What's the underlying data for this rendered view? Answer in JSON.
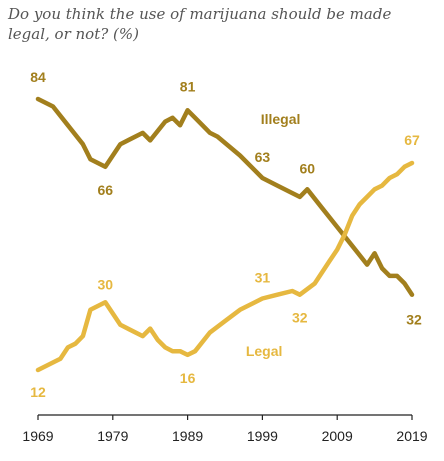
{
  "question": "Do you think the use of marijuana should be made legal, or not? (%)",
  "colors": {
    "illegal": "#A27F1D",
    "legal": "#E6B840",
    "axis": "#222222"
  },
  "chart_data": {
    "type": "line",
    "title": "Do you think the use of marijuana should be made legal, or not? (%)",
    "xlim": [
      1969,
      2019
    ],
    "ylim": [
      0,
      100
    ],
    "x_ticks": [
      "1969",
      "1979",
      "1989",
      "1999",
      "2009",
      "2019"
    ],
    "series": [
      {
        "name": "Illegal",
        "points": [
          [
            1969,
            84
          ],
          [
            1971,
            82
          ],
          [
            1973,
            77
          ],
          [
            1975,
            72
          ],
          [
            1976,
            68
          ],
          [
            1978,
            66
          ],
          [
            1980,
            72
          ],
          [
            1983,
            75
          ],
          [
            1984,
            73
          ],
          [
            1986,
            78
          ],
          [
            1987,
            79
          ],
          [
            1988,
            77
          ],
          [
            1989,
            81
          ],
          [
            1990,
            79
          ],
          [
            1992,
            75
          ],
          [
            1993,
            74
          ],
          [
            1996,
            69
          ],
          [
            1999,
            63
          ],
          [
            2001,
            61
          ],
          [
            2003,
            59
          ],
          [
            2004,
            58
          ],
          [
            2005,
            60
          ],
          [
            2007,
            55
          ],
          [
            2009,
            50
          ],
          [
            2011,
            45
          ],
          [
            2013,
            40
          ],
          [
            2014,
            43
          ],
          [
            2015,
            39
          ],
          [
            2016,
            37
          ],
          [
            2017,
            37
          ],
          [
            2018,
            35
          ],
          [
            2019,
            32
          ]
        ]
      },
      {
        "name": "Legal",
        "points": [
          [
            1969,
            12
          ],
          [
            1972,
            15
          ],
          [
            1973,
            18
          ],
          [
            1974,
            19
          ],
          [
            1975,
            21
          ],
          [
            1976,
            28
          ],
          [
            1978,
            30
          ],
          [
            1980,
            24
          ],
          [
            1983,
            21
          ],
          [
            1984,
            23
          ],
          [
            1985,
            20
          ],
          [
            1986,
            18
          ],
          [
            1987,
            17
          ],
          [
            1988,
            17
          ],
          [
            1989,
            16
          ],
          [
            1990,
            17
          ],
          [
            1992,
            22
          ],
          [
            1994,
            25
          ],
          [
            1996,
            28
          ],
          [
            1999,
            31
          ],
          [
            2001,
            32
          ],
          [
            2003,
            33
          ],
          [
            2004,
            32
          ],
          [
            2006,
            35
          ],
          [
            2008,
            41
          ],
          [
            2009,
            44
          ],
          [
            2010,
            48
          ],
          [
            2011,
            53
          ],
          [
            2012,
            56
          ],
          [
            2013,
            58
          ],
          [
            2014,
            60
          ],
          [
            2015,
            61
          ],
          [
            2016,
            63
          ],
          [
            2017,
            64
          ],
          [
            2018,
            66
          ],
          [
            2019,
            67
          ]
        ]
      }
    ],
    "data_labels": [
      {
        "series": "Illegal",
        "x": 1969,
        "y": 84,
        "text": "84"
      },
      {
        "series": "Illegal",
        "x": 1978,
        "y": 66,
        "text": "66"
      },
      {
        "series": "Illegal",
        "x": 1989,
        "y": 81,
        "text": "81"
      },
      {
        "series": "Illegal",
        "x": 1999,
        "y": 63,
        "text": "63"
      },
      {
        "series": "Illegal",
        "x": 2005,
        "y": 60,
        "text": "60"
      },
      {
        "series": "Illegal",
        "x": 2019,
        "y": 32,
        "text": "32"
      },
      {
        "series": "Legal",
        "x": 1969,
        "y": 12,
        "text": "12"
      },
      {
        "series": "Legal",
        "x": 1978,
        "y": 30,
        "text": "30"
      },
      {
        "series": "Legal",
        "x": 1989,
        "y": 16,
        "text": "16"
      },
      {
        "series": "Legal",
        "x": 1999,
        "y": 31,
        "text": "31"
      },
      {
        "series": "Legal",
        "x": 2004,
        "y": 32,
        "text": "32"
      },
      {
        "series": "Legal",
        "x": 2019,
        "y": 67,
        "text": "67"
      }
    ],
    "series_labels": [
      {
        "series": "Illegal",
        "text": "Illegal"
      },
      {
        "series": "Legal",
        "text": "Legal"
      }
    ],
    "grid": false,
    "legend": "inline"
  }
}
